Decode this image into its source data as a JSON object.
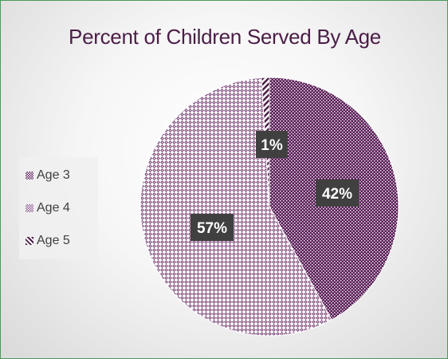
{
  "chart_data": {
    "type": "pie",
    "title": "Percent of Children Served By Age",
    "legend_position": "left",
    "categories": [
      "Age 3",
      "Age 4",
      "Age 5"
    ],
    "values": [
      42,
      57,
      1
    ],
    "labels": [
      "42%",
      "57%",
      "1%"
    ],
    "colors": [
      "#5b1f58",
      "#7a4a78",
      "#4b1d47"
    ]
  }
}
